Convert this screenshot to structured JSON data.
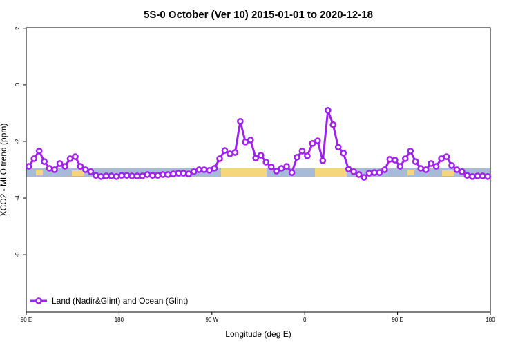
{
  "chart_data": {
    "type": "line",
    "title": "5S-0 October (Ver 10)   2015-01-01 to 2020-12-18",
    "xlabel": "Longitude (deg E)",
    "ylabel": "XCO2 - MLO trend (ppm)",
    "xlim": [
      90,
      540
    ],
    "ylim": [
      -8.02,
      2.02
    ],
    "xticks": [
      {
        "value": 90,
        "label": "90 E"
      },
      180,
      {
        "value": 270,
        "label": "90 W"
      },
      {
        "value": 360,
        "label": "0"
      },
      {
        "value": 450,
        "label": "90 E"
      },
      {
        "value": 540,
        "label": "180"
      }
    ],
    "yticks": [
      -6,
      -4,
      -2,
      0,
      2
    ],
    "legend": "bottom-left",
    "x": [
      92.5,
      97.5,
      102.5,
      107.5,
      112.5,
      117.5,
      122.5,
      127.5,
      132.5,
      137.5,
      142.5,
      147.5,
      152.5,
      157.5,
      162.5,
      167.5,
      172.5,
      177.5,
      182.5,
      187.5,
      192.5,
      197.5,
      202.5,
      207.5,
      212.5,
      217.5,
      222.5,
      227.5,
      232.5,
      237.5,
      242.5,
      247.5,
      252.5,
      257.5,
      262.5,
      267.5,
      272.5,
      277.5,
      282.5,
      287.5,
      292.5,
      297.5,
      302.5,
      307.5,
      312.5,
      317.5,
      322.5,
      327.5,
      332.5,
      337.5,
      342.5,
      347.5,
      352.5,
      357.5,
      362.5,
      367.5,
      372.5,
      377.5,
      382.5,
      387.5,
      392.5,
      397.5,
      402.5,
      407.5,
      412.5,
      417.5,
      422.5,
      427.5,
      432.5,
      437.5,
      442.5,
      447.5,
      452.5,
      457.5,
      462.5,
      467.5,
      472.5,
      477.5,
      482.5,
      487.5,
      492.5,
      497.5,
      502.5,
      507.5,
      512.5,
      517.5,
      522.5,
      527.5,
      532.5,
      537.5
    ],
    "series": [
      {
        "name": "Land (Nadir&Glint) and Ocean (Glint)",
        "color": "#a020f0",
        "values": [
          -2.88,
          -2.61,
          -2.34,
          -2.71,
          -2.95,
          -3.0,
          -2.78,
          -2.88,
          -2.61,
          -2.54,
          -2.88,
          -3.0,
          -3.07,
          -3.2,
          -3.24,
          -3.22,
          -3.22,
          -3.24,
          -3.2,
          -3.2,
          -3.22,
          -3.22,
          -3.22,
          -3.17,
          -3.2,
          -3.2,
          -3.17,
          -3.17,
          -3.15,
          -3.12,
          -3.12,
          -3.15,
          -3.07,
          -3.0,
          -3.0,
          -3.02,
          -2.95,
          -2.61,
          -2.32,
          -2.44,
          -2.39,
          -1.29,
          -2.02,
          -1.95,
          -2.59,
          -2.49,
          -2.73,
          -2.9,
          -3.05,
          -2.95,
          -2.88,
          -3.1,
          -2.56,
          -2.34,
          -2.51,
          -2.07,
          -1.98,
          -2.68,
          -0.9,
          -1.41,
          -2.2,
          -2.41,
          -2.98,
          -3.07,
          -3.17,
          -3.27,
          -3.12,
          -3.1,
          -3.1,
          -3.0,
          -2.63,
          -2.66,
          -2.88,
          -2.61,
          -2.34,
          -2.71,
          -2.95,
          -3.0,
          -2.78,
          -2.88,
          -2.61,
          -2.54,
          -2.85,
          -3.0,
          -3.07,
          -3.2,
          -3.24,
          -3.22,
          -3.22,
          -3.24
        ]
      }
    ]
  }
}
